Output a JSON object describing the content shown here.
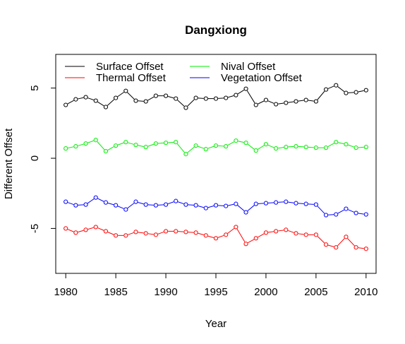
{
  "chart_data": {
    "type": "line",
    "title": "Dangxiong",
    "xlabel": "Year",
    "ylabel": "Different Offset",
    "xlim": [
      1979,
      2011
    ],
    "ylim": [
      -8.2,
      7.4
    ],
    "x_ticks": [
      1980,
      1985,
      1990,
      1995,
      2000,
      2005,
      2010
    ],
    "y_ticks": [
      -5,
      0,
      5
    ],
    "grid": false,
    "legend_position": "top-left",
    "x": [
      1980,
      1981,
      1982,
      1983,
      1984,
      1985,
      1986,
      1987,
      1988,
      1989,
      1990,
      1991,
      1992,
      1993,
      1994,
      1995,
      1996,
      1997,
      1998,
      1999,
      2000,
      2001,
      2002,
      2003,
      2004,
      2005,
      2006,
      2007,
      2008,
      2009,
      2010
    ],
    "series": [
      {
        "name": "Surface Offset",
        "color": "#000000",
        "values": [
          3.8,
          4.2,
          4.35,
          4.1,
          3.65,
          4.3,
          4.8,
          4.1,
          4.05,
          4.45,
          4.45,
          4.25,
          3.6,
          4.3,
          4.25,
          4.25,
          4.3,
          4.5,
          4.95,
          3.8,
          4.15,
          3.85,
          3.95,
          4.05,
          4.15,
          4.05,
          4.9,
          5.2,
          4.65,
          4.7,
          4.85
        ]
      },
      {
        "name": "Thermal Offset",
        "color": "#ff0000",
        "values": [
          -5.0,
          -5.3,
          -5.1,
          -4.9,
          -5.2,
          -5.5,
          -5.5,
          -5.25,
          -5.35,
          -5.45,
          -5.2,
          -5.2,
          -5.25,
          -5.3,
          -5.5,
          -5.7,
          -5.45,
          -4.9,
          -6.1,
          -5.7,
          -5.3,
          -5.2,
          -5.1,
          -5.35,
          -5.45,
          -5.45,
          -6.15,
          -6.35,
          -5.6,
          -6.35,
          -6.45
        ]
      },
      {
        "name": "Nival Offset",
        "color": "#00ee00",
        "values": [
          0.7,
          0.85,
          1.05,
          1.3,
          0.5,
          0.9,
          1.15,
          0.95,
          0.8,
          1.05,
          1.1,
          1.15,
          0.3,
          0.9,
          0.65,
          0.9,
          0.85,
          1.25,
          1.1,
          0.55,
          1.0,
          0.7,
          0.8,
          0.85,
          0.8,
          0.75,
          0.75,
          1.15,
          1.0,
          0.75,
          0.8
        ]
      },
      {
        "name": "Vegetation Offset",
        "color": "#0000ff",
        "values": [
          -3.1,
          -3.35,
          -3.3,
          -2.8,
          -3.15,
          -3.35,
          -3.65,
          -3.1,
          -3.3,
          -3.35,
          -3.3,
          -3.05,
          -3.3,
          -3.35,
          -3.55,
          -3.35,
          -3.4,
          -3.25,
          -3.85,
          -3.25,
          -3.2,
          -3.15,
          -3.1,
          -3.2,
          -3.25,
          -3.3,
          -4.05,
          -4.0,
          -3.6,
          -3.9,
          -4.0
        ]
      }
    ]
  }
}
